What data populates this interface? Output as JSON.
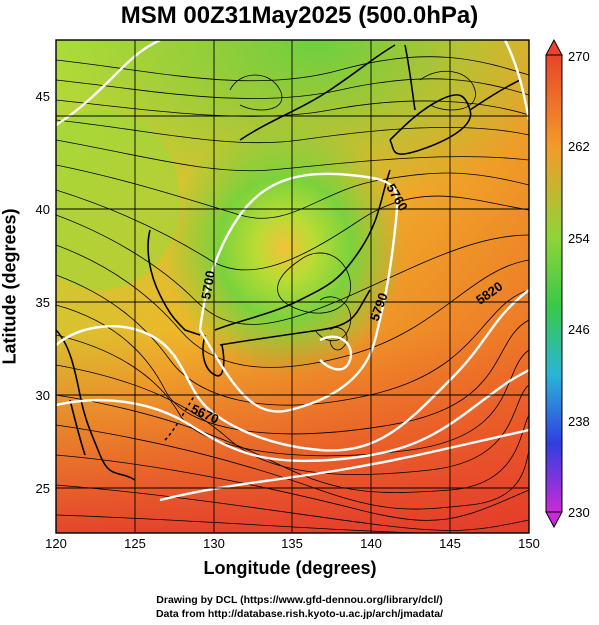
{
  "title": "MSM 00Z31May2025 (500.0hPa)",
  "xlabel": "Longitude (degrees)",
  "ylabel": "Latitude  (degrees)",
  "x_ticks": [
    "120",
    "125",
    "130",
    "135",
    "140",
    "145",
    "150"
  ],
  "y_ticks": [
    "25",
    "30",
    "35",
    "40",
    "45"
  ],
  "colorbar": {
    "min": "230",
    "max": "270",
    "ticks": [
      "270",
      "262",
      "254",
      "246",
      "238",
      "230"
    ]
  },
  "contours": {
    "labels": [
      "5790",
      "5700",
      "5820",
      "5670",
      "5760"
    ]
  },
  "credit_line1": "Drawing by DCL (https://www.gfd-dennou.org/library/dcl/)",
  "credit_line2": "Data from http://database.rish.kyoto-u.ac.jp/arch/jmadata/",
  "colors": {
    "cold_trough": "#8ad83a",
    "warm_south": "#e8452a",
    "contour": "#ffffff",
    "streamline": "#000000",
    "coast": "#000000"
  },
  "chart_data": {
    "type": "heatmap",
    "title": "MSM 00Z31May2025 (500.0hPa)",
    "xlabel": "Longitude (degrees)",
    "ylabel": "Latitude  (degrees)",
    "xlim": [
      120,
      150
    ],
    "ylim": [
      22.5,
      47.5
    ],
    "colorbar_range": [
      230,
      270
    ],
    "colorbar_ticks": [
      270,
      262,
      254,
      246,
      238,
      230
    ],
    "contour_labels": [
      "5790",
      "5700",
      "5820",
      "5670",
      "5760"
    ]
  }
}
